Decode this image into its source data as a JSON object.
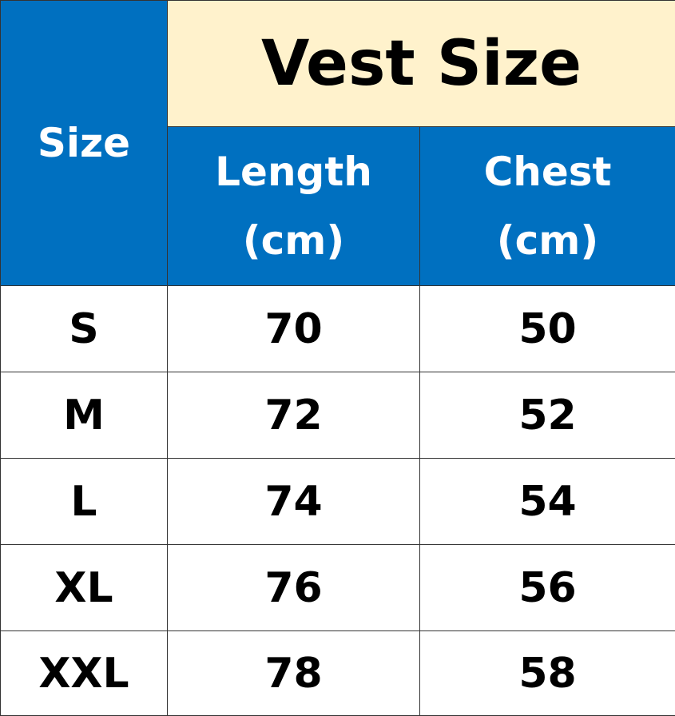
{
  "table": {
    "title": "Vest Size",
    "size_header": "Size",
    "columns": [
      {
        "line1": "Length",
        "line2": "(cm)"
      },
      {
        "line1": "Chest",
        "line2": "(cm)"
      }
    ],
    "rows": [
      {
        "size": "S",
        "length": "70",
        "chest": "50"
      },
      {
        "size": "M",
        "length": "72",
        "chest": "52"
      },
      {
        "size": "L",
        "length": "74",
        "chest": "54"
      },
      {
        "size": "XL",
        "length": "76",
        "chest": "56"
      },
      {
        "size": "XXL",
        "length": "78",
        "chest": "58"
      }
    ],
    "colors": {
      "header_blue": "#0070C0",
      "title_cream": "#FFF2CC"
    }
  }
}
